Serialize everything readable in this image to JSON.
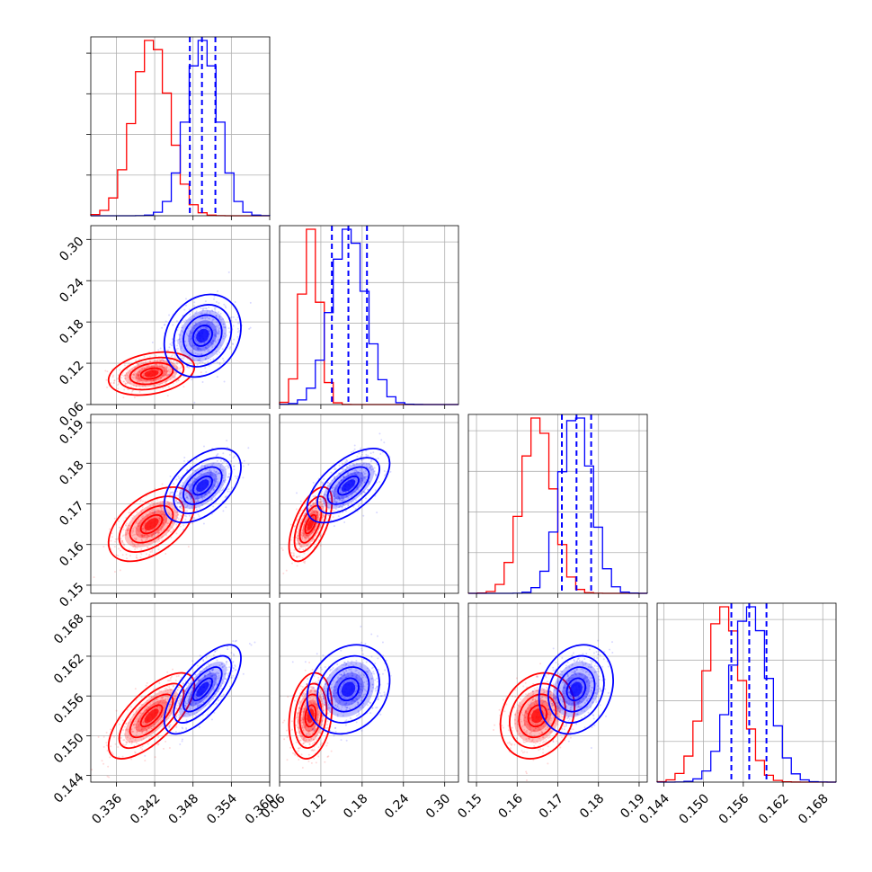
{
  "chart_data": {
    "type": "corner",
    "description_of_layout": "lower-triangular corner plot",
    "colors": {
      "run_a": "#ff0000",
      "run_b": "#0000ff",
      "grid": "#b0b0b0"
    },
    "grid": true,
    "parameters": [
      {
        "range": [
          0.332,
          0.36
        ],
        "ticks": [
          0.336,
          0.342,
          0.348,
          0.354,
          0.36
        ],
        "tick_labels": [
          "0.336",
          "0.342",
          "0.348",
          "0.354",
          "0.360"
        ]
      },
      {
        "range": [
          0.06,
          0.32
        ],
        "ticks": [
          0.06,
          0.12,
          0.18,
          0.24,
          0.3
        ],
        "tick_labels": [
          "0.06",
          "0.12",
          "0.18",
          "0.24",
          "0.30"
        ]
      },
      {
        "range": [
          0.148,
          0.192
        ],
        "ticks": [
          0.15,
          0.16,
          0.17,
          0.18,
          0.19
        ],
        "tick_labels": [
          "0.15",
          "0.16",
          "0.17",
          "0.18",
          "0.19"
        ]
      },
      {
        "range": [
          0.143,
          0.17
        ],
        "ticks": [
          0.144,
          0.15,
          0.156,
          0.162,
          0.168
        ],
        "tick_labels": [
          "0.144",
          "0.150",
          "0.156",
          "0.162",
          "0.168"
        ]
      }
    ],
    "series": [
      {
        "color": "#ff0000",
        "means": [
          0.3415,
          0.105,
          0.165,
          0.153
        ],
        "sigmas": [
          0.0028,
          0.013,
          0.0038,
          0.0027
        ],
        "correlations": [
          [
            1,
            0.3,
            0.5,
            0.7
          ],
          [
            0.3,
            1,
            0.6,
            0.2
          ],
          [
            0.5,
            0.6,
            1,
            0.2
          ],
          [
            0.7,
            0.2,
            0.2,
            1
          ]
        ]
      },
      {
        "color": "#0000ff",
        "means": [
          0.3495,
          0.16,
          0.1745,
          0.157
        ],
        "sigmas": [
          0.0025,
          0.025,
          0.0038,
          0.0028
        ],
        "correlations": [
          [
            1,
            0.2,
            0.5,
            0.7
          ],
          [
            0.2,
            1,
            0.6,
            0.2
          ],
          [
            0.5,
            0.6,
            1,
            0.2
          ],
          [
            0.7,
            0.2,
            0.2,
            1
          ]
        ]
      }
    ],
    "quantile_lines": [
      [
        0.3475,
        0.3494,
        0.3515
      ],
      [
        0.136,
        0.16,
        0.187
      ],
      [
        0.171,
        0.1746,
        0.1782
      ],
      [
        0.1542,
        0.1569,
        0.1595
      ]
    ],
    "quantile_line_color": "#0000ff",
    "quantile_line_style": "dashed"
  }
}
